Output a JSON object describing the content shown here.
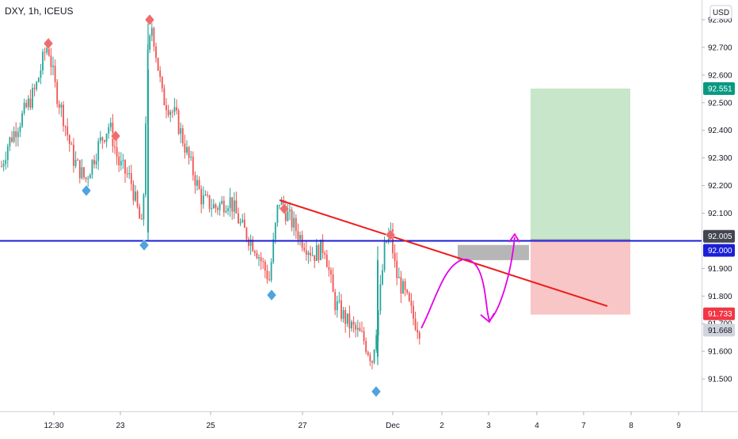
{
  "chart_title": "DXY, 1h, ICEUS",
  "currency_button": "USD",
  "colors": {
    "up": "#26a69a",
    "down": "#ef5350",
    "support_line": "#1a1fd6",
    "trendline": "#ee1b1b",
    "projection": "#e600e6",
    "target_zone": "#c8e6c9",
    "stop_zone": "#f8c6c6",
    "grey_box": "#9e9e9e",
    "top_marker": "#f06c6c",
    "bottom_marker": "#4fa3e0"
  },
  "price_badges": {
    "target": {
      "label": "92.551",
      "color": "#089981"
    },
    "current": {
      "label": "92.005",
      "color": "#434651"
    },
    "support": {
      "label": "92.000",
      "color": "#1a1fd6"
    },
    "stop": {
      "label": "91.733",
      "color": "#f23645"
    },
    "last": {
      "label": "91.668",
      "color": "#d1d4dc"
    }
  },
  "chart_data": {
    "type": "candlestick",
    "title": "DXY, 1h, ICEUS",
    "ylim": [
      91.45,
      92.85
    ],
    "y_ticks": [
      "92.800",
      "92.700",
      "92.600",
      "92.500",
      "92.400",
      "92.300",
      "92.200",
      "92.100",
      "91.900",
      "91.800",
      "91.700",
      "91.600",
      "91.500"
    ],
    "x_ticks": [
      "12:30",
      "23",
      "25",
      "27",
      "Dec",
      "2",
      "3",
      "4",
      "7",
      "8",
      "9"
    ],
    "grid": false,
    "key_points": [
      {
        "time": "20 Nov 12:00",
        "value": 92.72,
        "marker": "top"
      },
      {
        "time": "22 Nov 04:00",
        "value": 92.21,
        "marker": "bottom"
      },
      {
        "time": "22 Nov 19:00",
        "value": 92.39,
        "marker": "top"
      },
      {
        "time": "23 Nov 14:00",
        "value": 92.02,
        "marker": "bottom"
      },
      {
        "time": "23 Nov 18:00",
        "value": 92.8,
        "marker": "top"
      },
      {
        "time": "26 Nov 05:00",
        "value": 91.85,
        "marker": "bottom"
      },
      {
        "time": "26 Nov 10:00",
        "value": 92.15,
        "marker": "top"
      },
      {
        "time": "30 Nov 08:00",
        "value": 91.55,
        "marker": "bottom"
      },
      {
        "time": "30 Nov 16:00",
        "value": 92.05,
        "marker": "top"
      },
      {
        "time": "1 Dec 04:00",
        "value": 91.67,
        "marker": "none"
      }
    ],
    "horizontal_level": 92.0,
    "trendline": {
      "from": {
        "time": "26 Nov 09:00",
        "value": 92.18
      },
      "to": {
        "time": "3 Dec 14:00",
        "value": 91.8
      }
    },
    "position": {
      "entry": 92.005,
      "target": 92.551,
      "stop": 91.733
    }
  }
}
